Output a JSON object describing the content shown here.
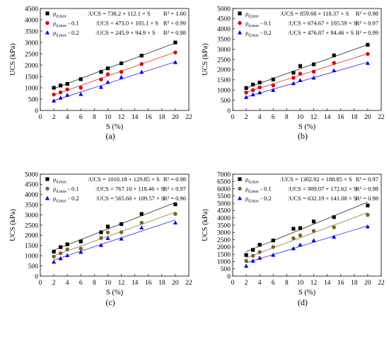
{
  "figure": {
    "axis_label_font": "serif"
  },
  "chart_data": [
    {
      "panel_label": "(a)",
      "type": "scatter",
      "xlabel": "S (%)",
      "ylabel": "UCS (kPa)",
      "xlim": [
        0,
        22
      ],
      "ylim": [
        0,
        4500
      ],
      "xticks": [
        0,
        2,
        4,
        6,
        8,
        10,
        12,
        14,
        16,
        18,
        20,
        22
      ],
      "yticks": [
        0,
        500,
        1000,
        1500,
        2000,
        2500,
        3000,
        3500,
        4000,
        4500
      ],
      "grid": false,
      "legend_position": "top-left",
      "series": [
        {
          "name": "ρd,max",
          "equation": ":UCS = 738.2 + 112.1 × S",
          "r2": "R² = 1.00",
          "color": "#000000",
          "marker": "square",
          "x": [
            2,
            3,
            4,
            6,
            9,
            10,
            12,
            15,
            20
          ],
          "y": [
            1000,
            1100,
            1170,
            1380,
            1700,
            1860,
            2080,
            2420,
            3000
          ],
          "fit": {
            "intercept": 738.2,
            "slope": 112.1
          }
        },
        {
          "name": "ρd,max - 0.1",
          "equation": ":UCS = 473.0 + 105.1 × S",
          "r2": "R² = 0.99",
          "color": "#e00000",
          "marker": "circle",
          "x": [
            2,
            3,
            4,
            6,
            9,
            10,
            12,
            15,
            20
          ],
          "y": [
            700,
            800,
            930,
            1000,
            1370,
            1600,
            1700,
            2050,
            2560
          ],
          "fit": {
            "intercept": 473.0,
            "slope": 105.1
          }
        },
        {
          "name": "ρd,max - 0.2",
          "equation": ":UCS = 245.9 + 94.9 × S",
          "r2": "R² = 0.98",
          "color": "#0000ee",
          "marker": "triangle",
          "x": [
            2,
            3,
            4,
            6,
            9,
            10,
            12,
            15,
            20
          ],
          "y": [
            430,
            560,
            680,
            720,
            1030,
            1250,
            1470,
            1700,
            2130
          ],
          "fit": {
            "intercept": 245.9,
            "slope": 94.9
          }
        }
      ]
    },
    {
      "panel_label": "(b)",
      "type": "scatter",
      "xlabel": "S (%)",
      "ylabel": "UCS (kPa)",
      "xlim": [
        0,
        22
      ],
      "ylim": [
        0,
        5000
      ],
      "xticks": [
        0,
        2,
        4,
        6,
        8,
        10,
        12,
        14,
        16,
        18,
        20,
        22
      ],
      "yticks": [
        0,
        500,
        1000,
        1500,
        2000,
        2500,
        3000,
        3500,
        4000,
        4500,
        5000
      ],
      "grid": false,
      "legend_position": "top-left",
      "series": [
        {
          "name": "ρd,max",
          "equation": ":UCS = 859.68 + 118.37 × S",
          "r2": "R² = 0.98",
          "color": "#000000",
          "marker": "square",
          "x": [
            2,
            3,
            4,
            6,
            9,
            10,
            12,
            15,
            20
          ],
          "y": [
            1100,
            1270,
            1370,
            1520,
            1850,
            2180,
            2260,
            2700,
            3220
          ],
          "fit": {
            "intercept": 859.68,
            "slope": 118.37
          }
        },
        {
          "name": "ρd,max - 0.1",
          "equation": ":UCS = 674.67 + 105.59 × S",
          "r2": "R² = 0.97",
          "color": "#e00000",
          "marker": "circle",
          "x": [
            2,
            3,
            4,
            6,
            9,
            10,
            12,
            15,
            20
          ],
          "y": [
            880,
            1000,
            1130,
            1230,
            1600,
            1800,
            1900,
            2330,
            2770
          ],
          "fit": {
            "intercept": 674.67,
            "slope": 105.59
          }
        },
        {
          "name": "ρd,max - 0.2",
          "equation": ":UCS = 476.87 + 94.46 × S",
          "r2": "R² = 0.99",
          "color": "#0000ee",
          "marker": "triangle",
          "x": [
            2,
            3,
            4,
            6,
            9,
            10,
            12,
            15,
            20
          ],
          "y": [
            650,
            780,
            880,
            1000,
            1330,
            1480,
            1600,
            1960,
            2320
          ],
          "fit": {
            "intercept": 476.87,
            "slope": 94.46
          }
        }
      ]
    },
    {
      "panel_label": "(c)",
      "type": "scatter",
      "xlabel": "S (%)",
      "ylabel": "UCS (kPa)",
      "xlim": [
        0,
        22
      ],
      "ylim": [
        0,
        5000
      ],
      "xticks": [
        0,
        2,
        4,
        6,
        8,
        10,
        12,
        14,
        16,
        18,
        20,
        22
      ],
      "yticks": [
        0,
        500,
        1000,
        1500,
        2000,
        2500,
        3000,
        3500,
        4000,
        4500,
        5000
      ],
      "grid": false,
      "legend_position": "top-left",
      "series": [
        {
          "name": "ρd,max",
          "equation": ":UCS = 1010.18 + 129.85 × S",
          "r2": "R² = 0.98",
          "color": "#000000",
          "marker": "square",
          "x": [
            2,
            3,
            4,
            6,
            9,
            10,
            12,
            15,
            20
          ],
          "y": [
            1200,
            1420,
            1560,
            1700,
            2150,
            2430,
            2550,
            3050,
            3520
          ],
          "fit": {
            "intercept": 1010.18,
            "slope": 129.85
          }
        },
        {
          "name": "ρd,max - 0.1",
          "equation": ":UCS = 767.10 + 118.46 × S",
          "r2": "R² = 0.97",
          "color": "#806020",
          "marker": "circle",
          "x": [
            2,
            3,
            4,
            6,
            9,
            10,
            12,
            15,
            20
          ],
          "y": [
            960,
            1120,
            1310,
            1350,
            1870,
            2140,
            2150,
            2620,
            3050
          ],
          "fit": {
            "intercept": 767.1,
            "slope": 118.46
          }
        },
        {
          "name": "ρd,max - 0.2",
          "equation": ":UCS = 565.60 + 109.57 × S",
          "r2": "R² = 0.96",
          "color": "#0000ee",
          "marker": "triangle",
          "x": [
            2,
            3,
            4,
            6,
            9,
            10,
            12,
            15,
            20
          ],
          "y": [
            700,
            870,
            1020,
            1180,
            1520,
            1860,
            1830,
            2380,
            2620
          ],
          "fit": {
            "intercept": 565.6,
            "slope": 109.57
          }
        }
      ]
    },
    {
      "panel_label": "(d)",
      "type": "scatter",
      "xlabel": "S (%)",
      "ylabel": "UCS (kPa)",
      "xlim": [
        0,
        22
      ],
      "ylim": [
        0,
        7000
      ],
      "xticks": [
        0,
        2,
        4,
        6,
        8,
        10,
        12,
        14,
        16,
        18,
        20,
        22
      ],
      "yticks": [
        0,
        500,
        1000,
        1500,
        2000,
        2500,
        3000,
        3500,
        4000,
        4500,
        5000,
        5500,
        6000,
        6500,
        7000
      ],
      "grid": false,
      "legend_position": "top-left",
      "series": [
        {
          "name": "ρd,max",
          "equation": ":UCS = 1302.92 + 188.85 × S",
          "r2": "R² = 0.97",
          "color": "#000000",
          "marker": "square",
          "x": [
            2,
            3,
            4,
            6,
            9,
            10,
            12,
            15,
            20
          ],
          "y": [
            1450,
            1800,
            2150,
            2450,
            3250,
            3300,
            3750,
            4050,
            4850
          ],
          "fit": {
            "intercept": 1302.92,
            "slope": 188.85
          }
        },
        {
          "name": "ρd,max - 0.1",
          "equation": ":UCS = 909.07 + 172.62 × S",
          "r2": "R² = 0.98",
          "color": "#806020",
          "marker": "circle",
          "x": [
            2,
            3,
            4,
            6,
            9,
            10,
            12,
            15,
            20
          ],
          "y": [
            1050,
            1400,
            1650,
            2000,
            2600,
            2800,
            3100,
            3350,
            4200
          ],
          "fit": {
            "intercept": 909.07,
            "slope": 172.62
          }
        },
        {
          "name": "ρd,max - 0.2",
          "equation": ":UCS = 632.19 + 141.08 × S",
          "r2": "R² = 0.98",
          "color": "#0000ee",
          "marker": "triangle",
          "x": [
            2,
            3,
            4,
            6,
            9,
            10,
            12,
            15,
            20
          ],
          "y": [
            700,
            1050,
            1250,
            1450,
            1900,
            2150,
            2450,
            2700,
            3400
          ],
          "fit": {
            "intercept": 632.19,
            "slope": 141.08
          }
        }
      ]
    }
  ]
}
